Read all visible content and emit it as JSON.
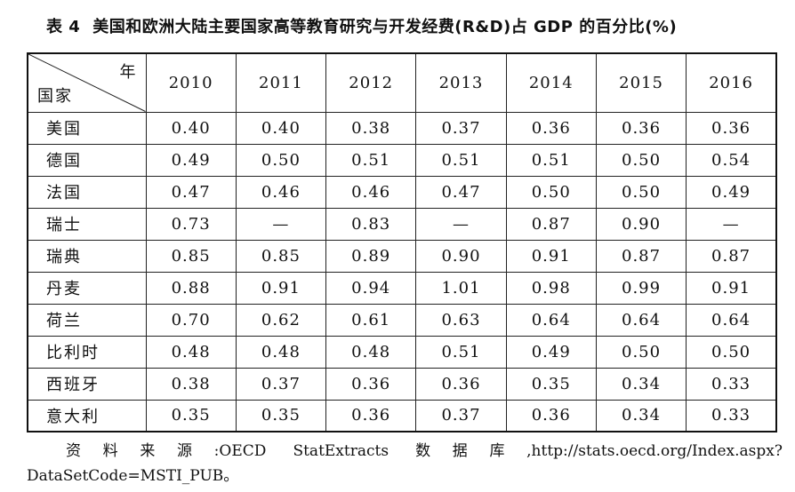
{
  "caption": {
    "label": "表 4",
    "title": "美国和欧洲大陆主要国家高等教育研究与开发经费(R&D)占 GDP 的百分比(%)"
  },
  "table": {
    "corner_year": "年",
    "corner_country": "国家",
    "years": [
      "2010",
      "2011",
      "2012",
      "2013",
      "2014",
      "2015",
      "2016"
    ],
    "rows": [
      {
        "country": "美国",
        "values": [
          "0.40",
          "0.40",
          "0.38",
          "0.37",
          "0.36",
          "0.36",
          "0.36"
        ]
      },
      {
        "country": "德国",
        "values": [
          "0.49",
          "0.50",
          "0.51",
          "0.51",
          "0.51",
          "0.50",
          "0.54"
        ]
      },
      {
        "country": "法国",
        "values": [
          "0.47",
          "0.46",
          "0.46",
          "0.47",
          "0.50",
          "0.50",
          "0.49"
        ]
      },
      {
        "country": "瑞士",
        "values": [
          "0.73",
          "—",
          "0.83",
          "—",
          "0.87",
          "0.90",
          "—"
        ]
      },
      {
        "country": "瑞典",
        "values": [
          "0.85",
          "0.85",
          "0.89",
          "0.90",
          "0.91",
          "0.87",
          "0.87"
        ]
      },
      {
        "country": "丹麦",
        "values": [
          "0.88",
          "0.91",
          "0.94",
          "1.01",
          "0.98",
          "0.99",
          "0.91"
        ]
      },
      {
        "country": "荷兰",
        "values": [
          "0.70",
          "0.62",
          "0.61",
          "0.63",
          "0.64",
          "0.64",
          "0.64"
        ]
      },
      {
        "country": "比利时",
        "values": [
          "0.48",
          "0.48",
          "0.48",
          "0.51",
          "0.49",
          "0.50",
          "0.50"
        ]
      },
      {
        "country": "西班牙",
        "values": [
          "0.38",
          "0.37",
          "0.36",
          "0.36",
          "0.35",
          "0.34",
          "0.33"
        ]
      },
      {
        "country": "意大利",
        "values": [
          "0.35",
          "0.35",
          "0.36",
          "0.37",
          "0.36",
          "0.34",
          "0.33"
        ]
      }
    ]
  },
  "source": "资料来源:OECD StatExtracts 数据库,http://stats.oecd.org/Index.aspx? DataSetCode=MSTI_PUB。"
}
